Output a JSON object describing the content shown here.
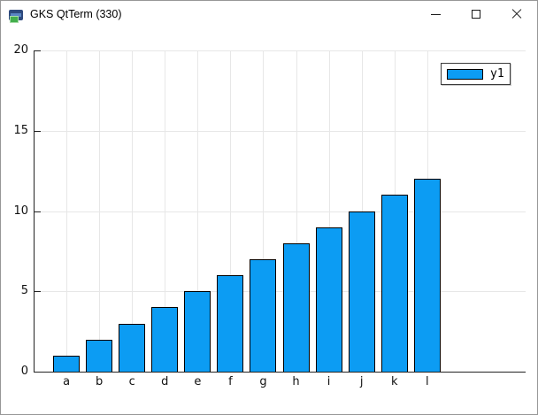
{
  "window": {
    "title": "GKS QtTerm (330)",
    "controls": {
      "minimize": "minimize",
      "maximize": "maximize",
      "close": "close"
    }
  },
  "chart_data": {
    "type": "bar",
    "title": "",
    "categories": [
      "a",
      "b",
      "c",
      "d",
      "e",
      "f",
      "g",
      "h",
      "i",
      "j",
      "k",
      "l"
    ],
    "series": [
      {
        "name": "y1",
        "values": [
          1,
          2,
          3,
          4,
          5,
          6,
          7,
          8,
          9,
          10,
          11,
          12
        ]
      }
    ],
    "ylim": [
      0,
      20
    ],
    "yticks": [
      0,
      5,
      10,
      15,
      20
    ],
    "xlim_units": [
      0,
      15
    ],
    "grid": true,
    "legend_position": "top-right",
    "colors": {
      "bar_fill": "#0c9cf3",
      "bar_border": "#000000",
      "grid": "#e7e7e7",
      "axis": "#222222",
      "background": "#ffffff"
    }
  }
}
